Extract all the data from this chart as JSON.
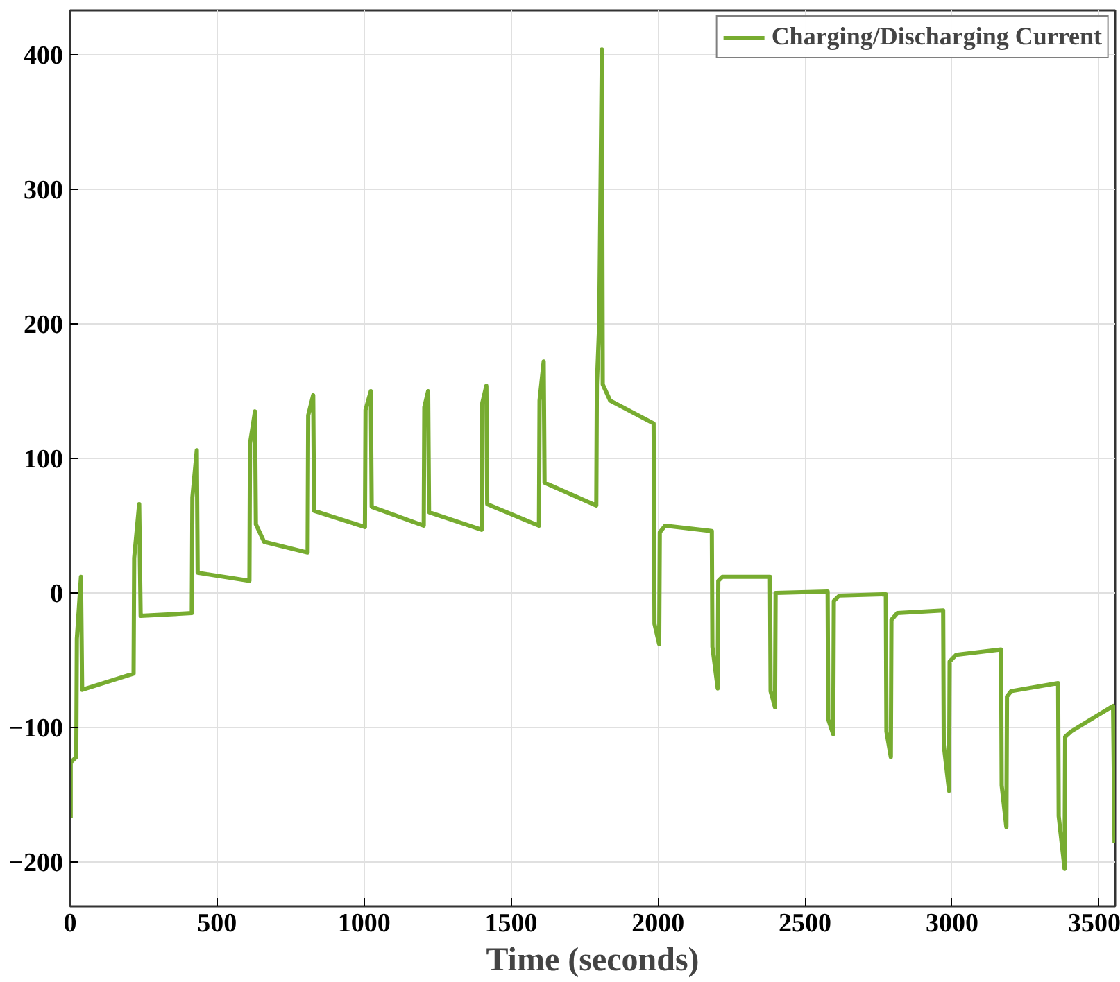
{
  "chart_data": {
    "type": "line",
    "xlabel": "Time (seconds)",
    "xlim": [
      0,
      3555
    ],
    "ylim": [
      -233,
      433
    ],
    "xticks": [
      0,
      500,
      1000,
      1500,
      2000,
      2500,
      3000,
      3500
    ],
    "yticks": [
      -200,
      -100,
      0,
      100,
      200,
      300,
      400
    ],
    "grid": true,
    "legend": "top right",
    "marker": "none",
    "line_style": "solid",
    "series": [
      {
        "name": "Charging/Discharging Current",
        "color": "#77ac30",
        "x": [
          2,
          2,
          21,
          23,
          37,
          41,
          216,
          218,
          235,
          240,
          414,
          416,
          431,
          434,
          610,
          612,
          629,
          632,
          660,
          808,
          810,
          827,
          830,
          1003,
          1005,
          1023,
          1026,
          1203,
          1205,
          1218,
          1221,
          1400,
          1402,
          1416,
          1419,
          1595,
          1597,
          1611,
          1614,
          1790,
          1792,
          1800,
          1809,
          1812,
          1837,
          1985,
          1988,
          2004,
          2006,
          2024,
          2183,
          2185,
          2203,
          2205,
          2219,
          2381,
          2383,
          2398,
          2400,
          2577,
          2579,
          2596,
          2598,
          2617,
          2775,
          2777,
          2792,
          2794,
          2814,
          2970,
          2972,
          2990,
          2992,
          3014,
          3167,
          3169,
          3185,
          3187,
          3201,
          3361,
          3363,
          3383,
          3385,
          3405,
          3548,
          3553
        ],
        "values": [
          -167,
          -126,
          -122,
          -34,
          12,
          -72,
          -60,
          26,
          66,
          -17,
          -15,
          71,
          106,
          15,
          9,
          111,
          135,
          51,
          38,
          30,
          132,
          147,
          61,
          49,
          136,
          150,
          64,
          50,
          138,
          150,
          60,
          47,
          141,
          154,
          66,
          50,
          143,
          172,
          82,
          65,
          155,
          200,
          404,
          155,
          143,
          126,
          -23,
          -38,
          45,
          50,
          46,
          -40,
          -71,
          9,
          12,
          12,
          -73,
          -85,
          0,
          1,
          -94,
          -105,
          -6,
          -2,
          -1,
          -103,
          -122,
          -20,
          -15,
          -13,
          -113,
          -147,
          -51,
          -46,
          -42,
          -143,
          -174,
          -77,
          -73,
          -67,
          -166,
          -205,
          -107,
          -103,
          -84,
          -186
        ]
      }
    ]
  }
}
